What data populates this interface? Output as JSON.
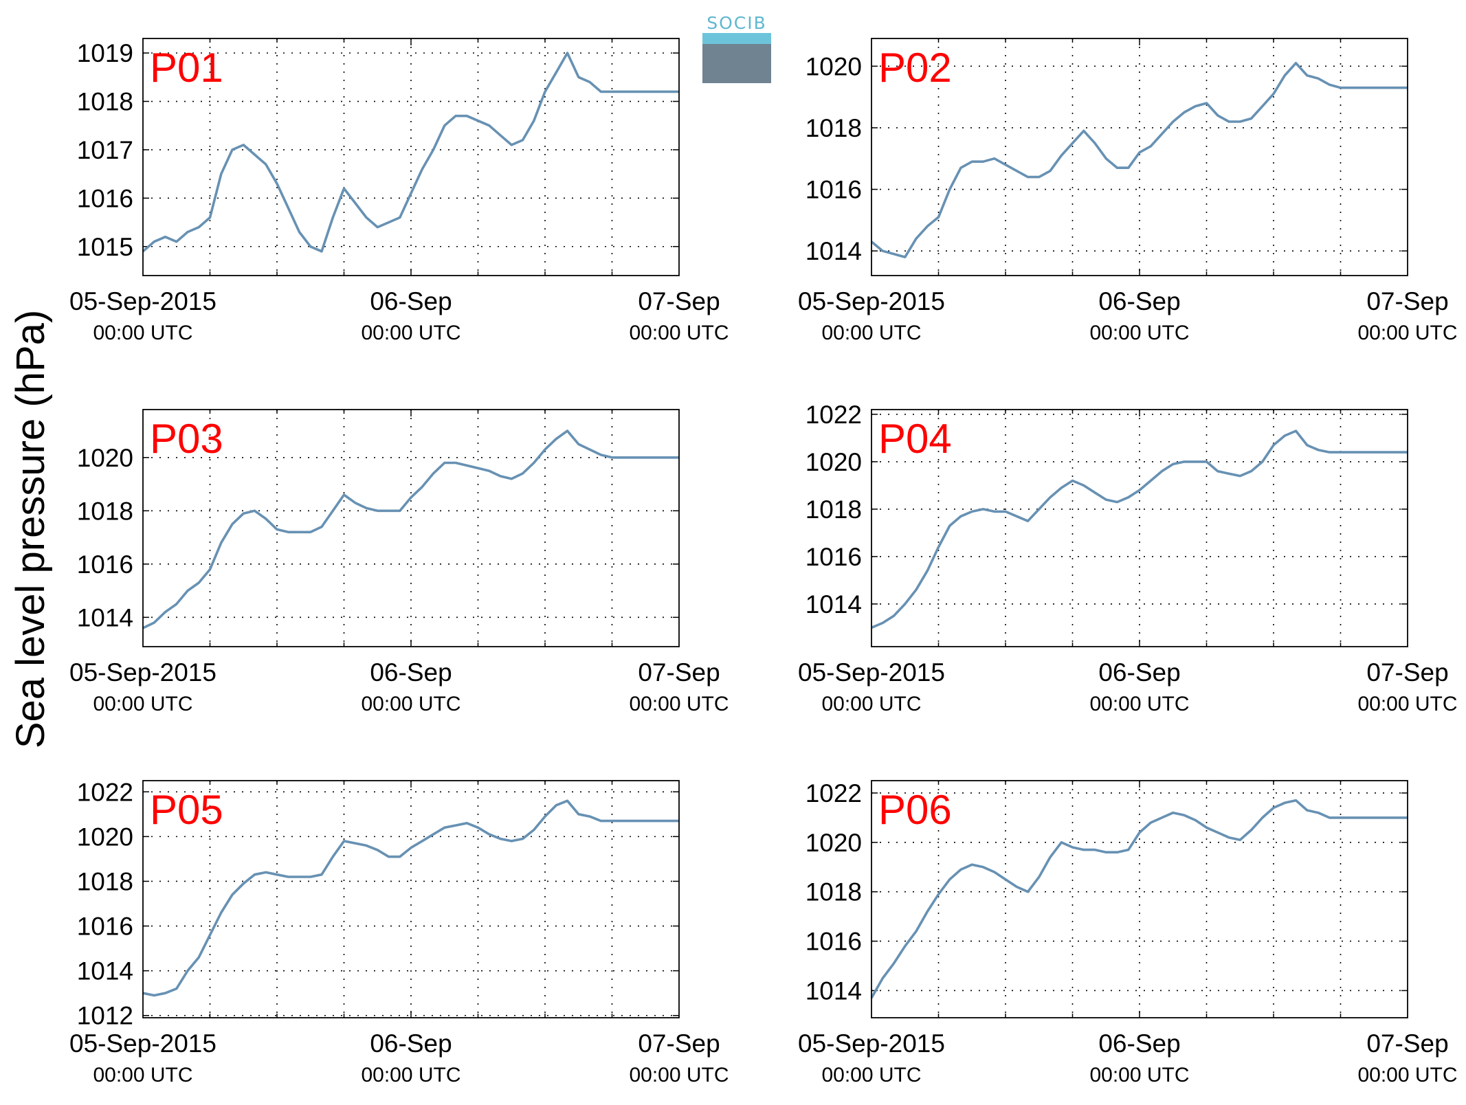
{
  "figure": {
    "ylabel": "Sea level pressure (hPa)",
    "logo_text": "SOCIB",
    "line_color": "#6791b3",
    "title_color": "#ff0000"
  },
  "chart_data": [
    {
      "type": "line",
      "title": "P01",
      "ylim": [
        1014.4,
        1019.3
      ],
      "yticks": [
        "1015",
        "1016",
        "1017",
        "1018",
        "1019"
      ],
      "xlim": [
        0,
        48
      ],
      "grid": true,
      "xtick_labels": [
        {
          "date": "05-Sep-2015",
          "time": "00:00 UTC"
        },
        {
          "date": "06-Sep",
          "time": "00:00 UTC"
        },
        {
          "date": "07-Sep",
          "time": "00:00 UTC"
        }
      ],
      "series": [
        {
          "x_hours": [
            0,
            1,
            2,
            3,
            4,
            5,
            6,
            7,
            8,
            9,
            10,
            11,
            12,
            13,
            14,
            15,
            16,
            17,
            18,
            19,
            20,
            21,
            22,
            23,
            24,
            25,
            26,
            27,
            28,
            29,
            30,
            31,
            32,
            33,
            34,
            35,
            36,
            37,
            38,
            39,
            40,
            41,
            42,
            43,
            44,
            45,
            46,
            47,
            48
          ],
          "values": [
            1014.9,
            1015.1,
            1015.2,
            1015.1,
            1015.3,
            1015.4,
            1015.6,
            1016.5,
            1017.0,
            1017.1,
            1016.9,
            1016.7,
            1016.3,
            1015.8,
            1015.3,
            1015.0,
            1014.9,
            1015.6,
            1016.2,
            1015.9,
            1015.6,
            1015.4,
            1015.5,
            1015.6,
            1016.1,
            1016.6,
            1017.0,
            1017.5,
            1017.7,
            1017.7,
            1017.6,
            1017.5,
            1017.3,
            1017.1,
            1017.2,
            1017.6,
            1018.2,
            1018.6,
            1019.0,
            1018.5,
            1018.4,
            1018.2,
            1018.2,
            1018.2,
            1018.2,
            1018.2,
            1018.2,
            1018.2,
            1018.2
          ]
        }
      ]
    },
    {
      "type": "line",
      "title": "P02",
      "ylim": [
        1013.2,
        1020.9
      ],
      "yticks": [
        "1014",
        "1016",
        "1018",
        "1020"
      ],
      "xlim": [
        0,
        48
      ],
      "grid": true,
      "xtick_labels": [
        {
          "date": "05-Sep-2015",
          "time": "00:00 UTC"
        },
        {
          "date": "06-Sep",
          "time": "00:00 UTC"
        },
        {
          "date": "07-Sep",
          "time": "00:00 UTC"
        }
      ],
      "series": [
        {
          "x_hours": [
            0,
            1,
            2,
            3,
            4,
            5,
            6,
            7,
            8,
            9,
            10,
            11,
            12,
            13,
            14,
            15,
            16,
            17,
            18,
            19,
            20,
            21,
            22,
            23,
            24,
            25,
            26,
            27,
            28,
            29,
            30,
            31,
            32,
            33,
            34,
            35,
            36,
            37,
            38,
            39,
            40,
            41,
            42,
            43,
            44,
            45,
            46,
            47,
            48
          ],
          "values": [
            1014.3,
            1014.0,
            1013.9,
            1013.8,
            1014.4,
            1014.8,
            1015.1,
            1016.0,
            1016.7,
            1016.9,
            1016.9,
            1017.0,
            1016.8,
            1016.6,
            1016.4,
            1016.4,
            1016.6,
            1017.1,
            1017.5,
            1017.9,
            1017.5,
            1017.0,
            1016.7,
            1016.7,
            1017.2,
            1017.4,
            1017.8,
            1018.2,
            1018.5,
            1018.7,
            1018.8,
            1018.4,
            1018.2,
            1018.2,
            1018.3,
            1018.7,
            1019.1,
            1019.7,
            1020.1,
            1019.7,
            1019.6,
            1019.4,
            1019.3,
            1019.3,
            1019.3,
            1019.3,
            1019.3,
            1019.3,
            1019.3
          ]
        }
      ]
    },
    {
      "type": "line",
      "title": "P03",
      "ylim": [
        1012.9,
        1021.8
      ],
      "yticks": [
        "1014",
        "1016",
        "1018",
        "1020"
      ],
      "xlim": [
        0,
        48
      ],
      "grid": true,
      "xtick_labels": [
        {
          "date": "05-Sep-2015",
          "time": "00:00 UTC"
        },
        {
          "date": "06-Sep",
          "time": "00:00 UTC"
        },
        {
          "date": "07-Sep",
          "time": "00:00 UTC"
        }
      ],
      "series": [
        {
          "x_hours": [
            0,
            1,
            2,
            3,
            4,
            5,
            6,
            7,
            8,
            9,
            10,
            11,
            12,
            13,
            14,
            15,
            16,
            17,
            18,
            19,
            20,
            21,
            22,
            23,
            24,
            25,
            26,
            27,
            28,
            29,
            30,
            31,
            32,
            33,
            34,
            35,
            36,
            37,
            38,
            39,
            40,
            41,
            42,
            43,
            44,
            45,
            46,
            47,
            48
          ],
          "values": [
            1013.6,
            1013.8,
            1014.2,
            1014.5,
            1015.0,
            1015.3,
            1015.8,
            1016.8,
            1017.5,
            1017.9,
            1018.0,
            1017.7,
            1017.3,
            1017.2,
            1017.2,
            1017.2,
            1017.4,
            1018.0,
            1018.6,
            1018.3,
            1018.1,
            1018.0,
            1018.0,
            1018.0,
            1018.5,
            1018.9,
            1019.4,
            1019.8,
            1019.8,
            1019.7,
            1019.6,
            1019.5,
            1019.3,
            1019.2,
            1019.4,
            1019.8,
            1020.3,
            1020.7,
            1021.0,
            1020.5,
            1020.3,
            1020.1,
            1020.0,
            1020.0,
            1020.0,
            1020.0,
            1020.0,
            1020.0,
            1020.0
          ]
        }
      ]
    },
    {
      "type": "line",
      "title": "P04",
      "ylim": [
        1012.2,
        1022.2
      ],
      "yticks": [
        "1014",
        "1016",
        "1018",
        "1020",
        "1022"
      ],
      "xlim": [
        0,
        48
      ],
      "grid": true,
      "xtick_labels": [
        {
          "date": "05-Sep-2015",
          "time": "00:00 UTC"
        },
        {
          "date": "06-Sep",
          "time": "00:00 UTC"
        },
        {
          "date": "07-Sep",
          "time": "00:00 UTC"
        }
      ],
      "series": [
        {
          "x_hours": [
            0,
            1,
            2,
            3,
            4,
            5,
            6,
            7,
            8,
            9,
            10,
            11,
            12,
            13,
            14,
            15,
            16,
            17,
            18,
            19,
            20,
            21,
            22,
            23,
            24,
            25,
            26,
            27,
            28,
            29,
            30,
            31,
            32,
            33,
            34,
            35,
            36,
            37,
            38,
            39,
            40,
            41,
            42,
            43,
            44,
            45,
            46,
            47,
            48
          ],
          "values": [
            1013.0,
            1013.2,
            1013.5,
            1014.0,
            1014.6,
            1015.4,
            1016.4,
            1017.3,
            1017.7,
            1017.9,
            1018.0,
            1017.9,
            1017.9,
            1017.7,
            1017.5,
            1018.0,
            1018.5,
            1018.9,
            1019.2,
            1019.0,
            1018.7,
            1018.4,
            1018.3,
            1018.5,
            1018.8,
            1019.2,
            1019.6,
            1019.9,
            1020.0,
            1020.0,
            1020.0,
            1019.6,
            1019.5,
            1019.4,
            1019.6,
            1020.0,
            1020.7,
            1021.1,
            1021.3,
            1020.7,
            1020.5,
            1020.4,
            1020.4,
            1020.4,
            1020.4,
            1020.4,
            1020.4,
            1020.4,
            1020.4
          ]
        }
      ]
    },
    {
      "type": "line",
      "title": "P05",
      "ylim": [
        1011.9,
        1022.5
      ],
      "yticks": [
        "1012",
        "1014",
        "1016",
        "1018",
        "1020",
        "1022"
      ],
      "xlim": [
        0,
        48
      ],
      "grid": true,
      "xtick_labels": [
        {
          "date": "05-Sep-2015",
          "time": "00:00 UTC"
        },
        {
          "date": "06-Sep",
          "time": "00:00 UTC"
        },
        {
          "date": "07-Sep",
          "time": "00:00 UTC"
        }
      ],
      "series": [
        {
          "x_hours": [
            0,
            1,
            2,
            3,
            4,
            5,
            6,
            7,
            8,
            9,
            10,
            11,
            12,
            13,
            14,
            15,
            16,
            17,
            18,
            19,
            20,
            21,
            22,
            23,
            24,
            25,
            26,
            27,
            28,
            29,
            30,
            31,
            32,
            33,
            34,
            35,
            36,
            37,
            38,
            39,
            40,
            41,
            42,
            43,
            44,
            45,
            46,
            47,
            48
          ],
          "values": [
            1013.0,
            1012.9,
            1013.0,
            1013.2,
            1014.0,
            1014.6,
            1015.6,
            1016.6,
            1017.4,
            1017.9,
            1018.3,
            1018.4,
            1018.3,
            1018.2,
            1018.2,
            1018.2,
            1018.3,
            1019.1,
            1019.8,
            1019.7,
            1019.6,
            1019.4,
            1019.1,
            1019.1,
            1019.5,
            1019.8,
            1020.1,
            1020.4,
            1020.5,
            1020.6,
            1020.4,
            1020.1,
            1019.9,
            1019.8,
            1019.9,
            1020.3,
            1020.9,
            1021.4,
            1021.6,
            1021.0,
            1020.9,
            1020.7,
            1020.7,
            1020.7,
            1020.7,
            1020.7,
            1020.7,
            1020.7,
            1020.7
          ]
        }
      ]
    },
    {
      "type": "line",
      "title": "P06",
      "ylim": [
        1012.9,
        1022.5
      ],
      "yticks": [
        "1014",
        "1016",
        "1018",
        "1020",
        "1022"
      ],
      "xlim": [
        0,
        48
      ],
      "grid": true,
      "xtick_labels": [
        {
          "date": "05-Sep-2015",
          "time": "00:00 UTC"
        },
        {
          "date": "06-Sep",
          "time": "00:00 UTC"
        },
        {
          "date": "07-Sep",
          "time": "00:00 UTC"
        }
      ],
      "series": [
        {
          "x_hours": [
            0,
            1,
            2,
            3,
            4,
            5,
            6,
            7,
            8,
            9,
            10,
            11,
            12,
            13,
            14,
            15,
            16,
            17,
            18,
            19,
            20,
            21,
            22,
            23,
            24,
            25,
            26,
            27,
            28,
            29,
            30,
            31,
            32,
            33,
            34,
            35,
            36,
            37,
            38,
            39,
            40,
            41,
            42,
            43,
            44,
            45,
            46,
            47,
            48
          ],
          "values": [
            1013.7,
            1014.5,
            1015.1,
            1015.8,
            1016.4,
            1017.2,
            1017.9,
            1018.5,
            1018.9,
            1019.1,
            1019.0,
            1018.8,
            1018.5,
            1018.2,
            1018.0,
            1018.6,
            1019.4,
            1020.0,
            1019.8,
            1019.7,
            1019.7,
            1019.6,
            1019.6,
            1019.7,
            1020.4,
            1020.8,
            1021.0,
            1021.2,
            1021.1,
            1020.9,
            1020.6,
            1020.4,
            1020.2,
            1020.1,
            1020.5,
            1021.0,
            1021.4,
            1021.6,
            1021.7,
            1021.3,
            1021.2,
            1021.0,
            1021.0,
            1021.0,
            1021.0,
            1021.0,
            1021.0,
            1021.0,
            1021.0
          ]
        }
      ]
    }
  ]
}
